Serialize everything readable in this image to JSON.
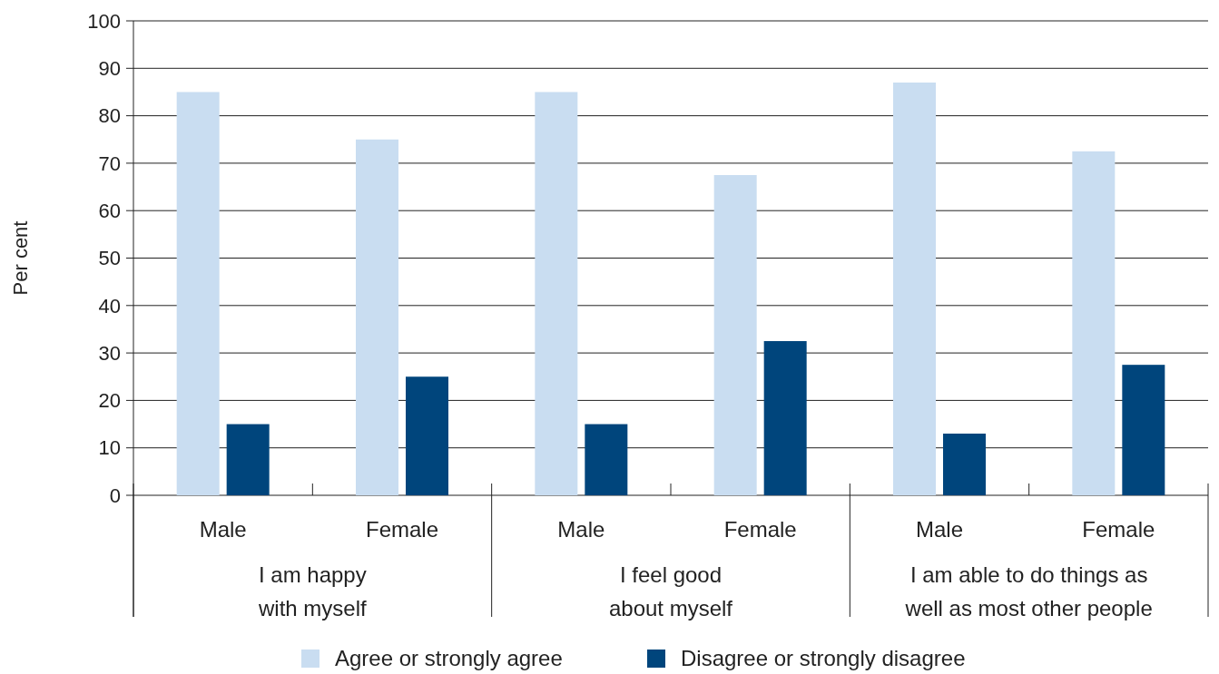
{
  "chart_data": {
    "type": "bar",
    "ylabel": "Per cent",
    "categories": [
      "Male",
      "Female",
      "Male",
      "Female",
      "Male",
      "Female"
    ],
    "series": [
      {
        "name": "Agree or strongly agree",
        "color": "#c9ddf1",
        "values": [
          85,
          75,
          85,
          67.5,
          87,
          72.5
        ]
      },
      {
        "name": "Disagree or strongly disagree",
        "color": "#00457c",
        "values": [
          15,
          25,
          15,
          32.5,
          13,
          27.5
        ]
      }
    ],
    "annotations": [
      "I am happy\nwith myself",
      "I feel good\nabout myself",
      "I am able to do things as\nwell as most other people"
    ],
    "ylim": [
      0,
      100
    ],
    "yticks": [
      0,
      10,
      20,
      30,
      40,
      50,
      60,
      70,
      80,
      90,
      100
    ],
    "grid": "y",
    "legend": "bottom"
  }
}
